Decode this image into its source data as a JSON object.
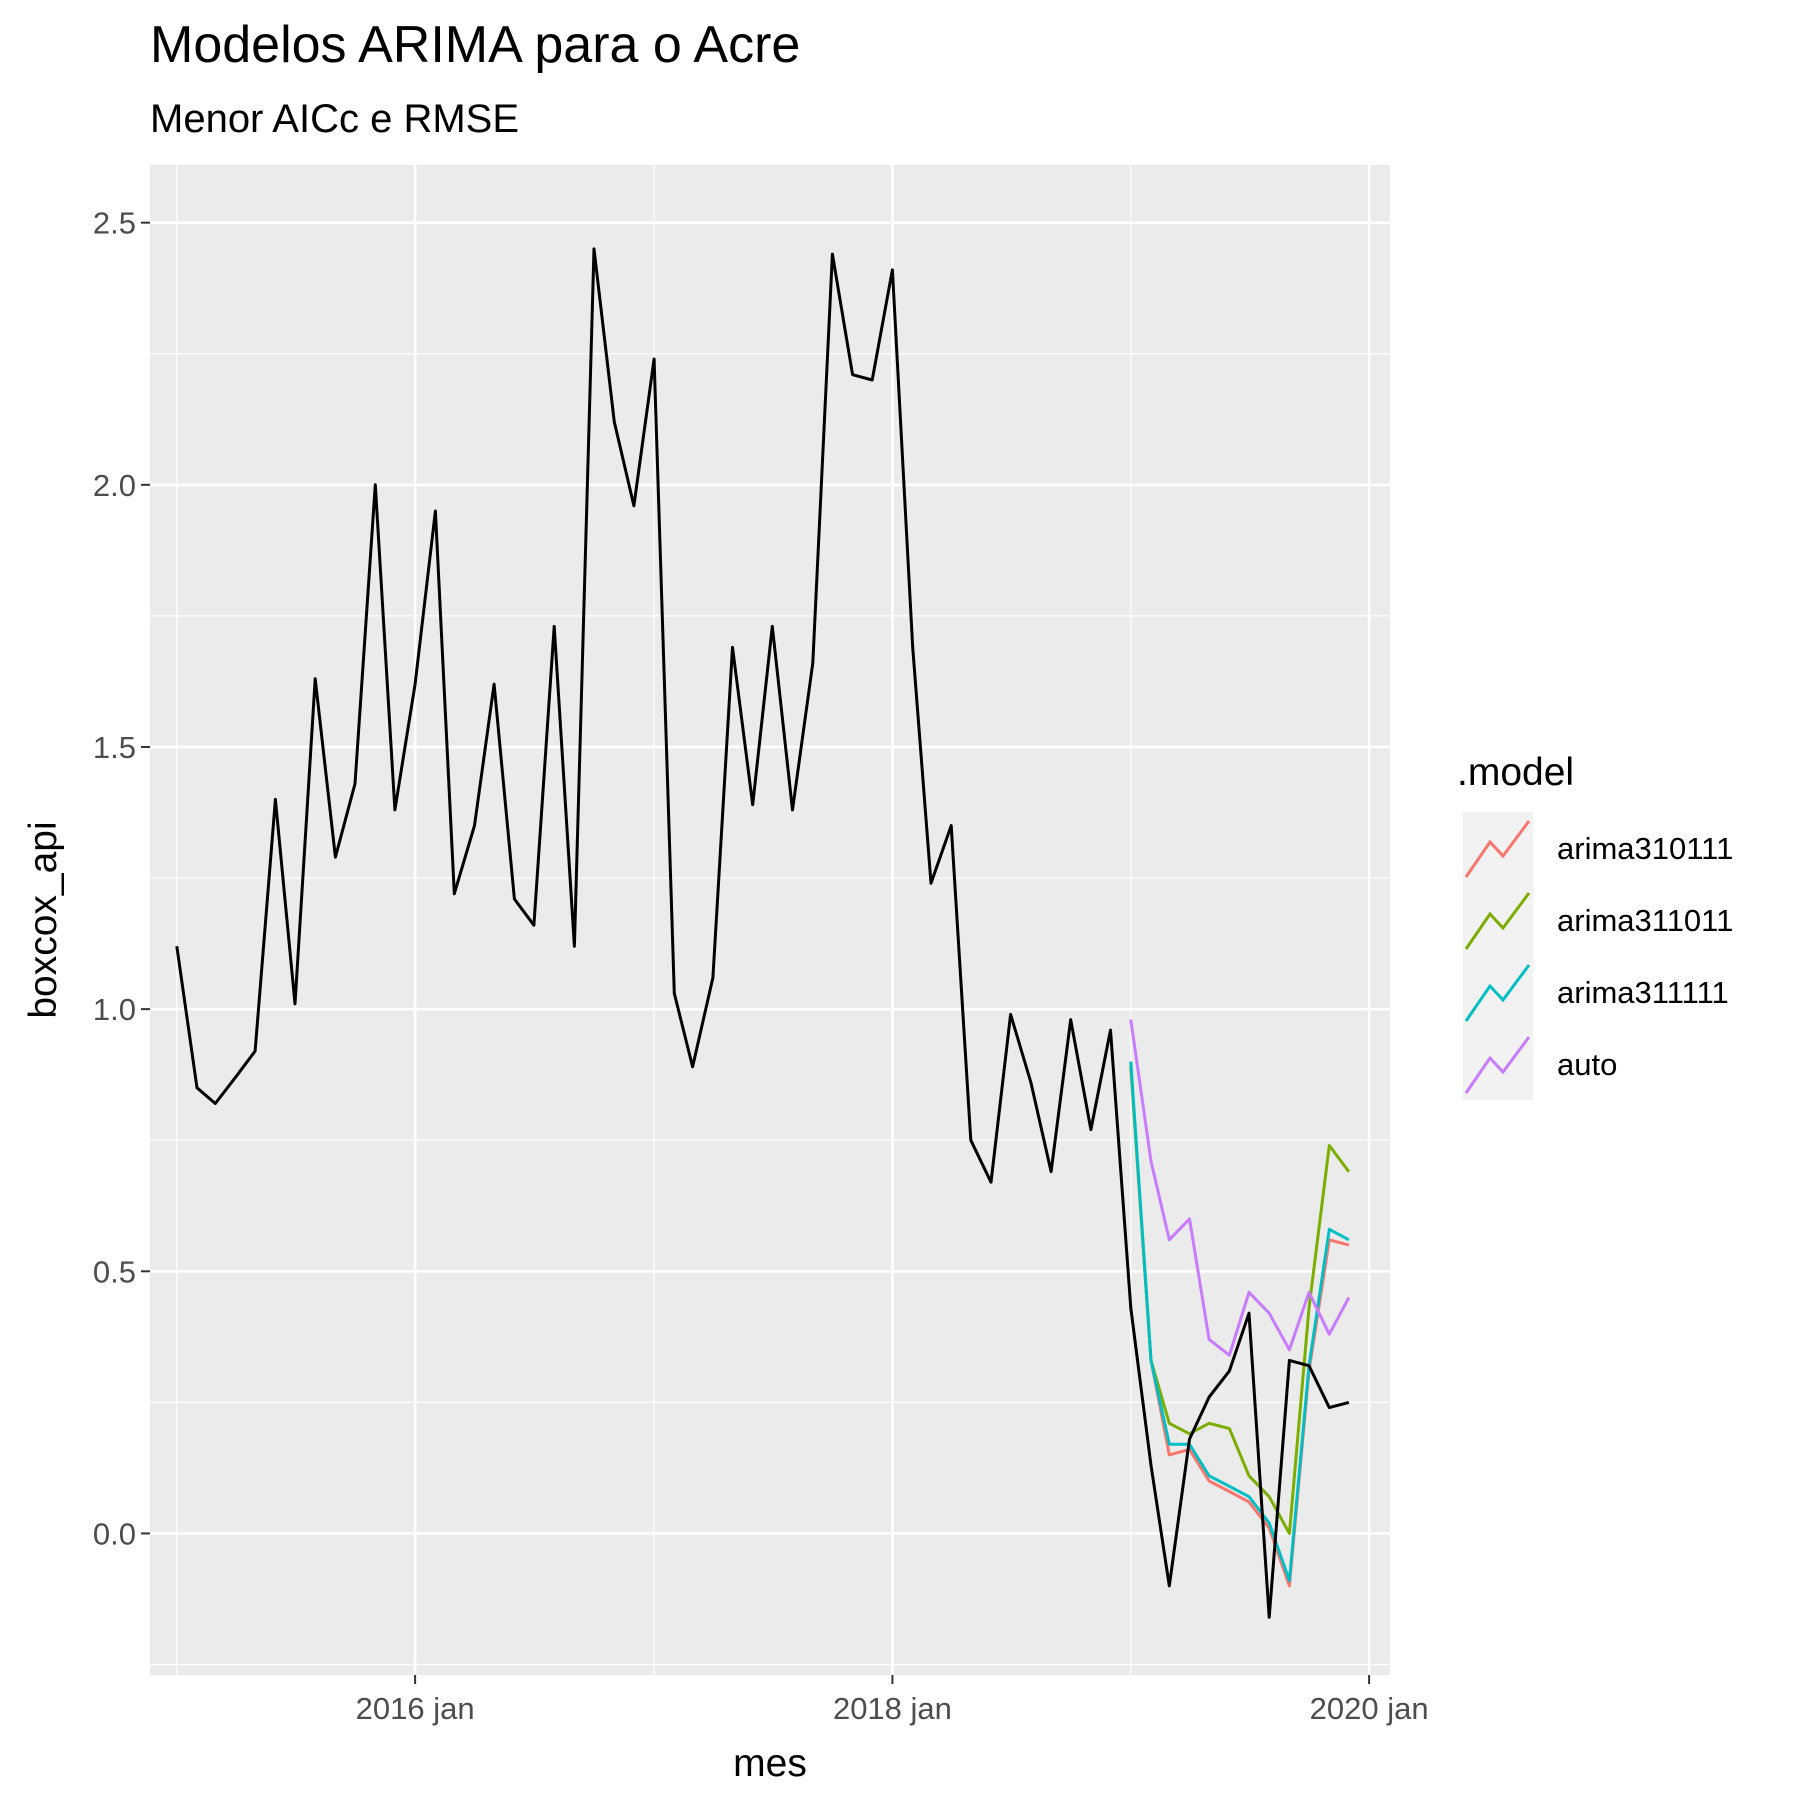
{
  "chart_data": {
    "type": "line",
    "title": "Modelos ARIMA para o Acre",
    "subtitle": "Menor AICc e RMSE",
    "xlabel": "mes",
    "ylabel": "boxcox_api",
    "x_ticks": [
      {
        "date": "2016-01",
        "label": "2016 jan"
      },
      {
        "date": "2018-01",
        "label": "2018 jan"
      },
      {
        "date": "2020-01",
        "label": "2020 jan"
      }
    ],
    "y_ticks": [
      "0.0",
      "0.5",
      "1.0",
      "1.5",
      "2.0",
      "2.5"
    ],
    "xlim": [
      "2014-11-21",
      "2020-02-02"
    ],
    "ylim": [
      -0.27,
      2.61
    ],
    "grid": true,
    "legend": {
      "title": ".model",
      "placement": "right",
      "entries": [
        {
          "name": "arima310111",
          "color": "#F8766D"
        },
        {
          "name": "arima311011",
          "color": "#7CAE00"
        },
        {
          "name": "arima311111",
          "color": "#00BFC4"
        },
        {
          "name": "auto",
          "color": "#C77CFF"
        }
      ]
    },
    "observed": {
      "color": "#000000",
      "x": [
        "2015-01",
        "2015-02",
        "2015-03",
        "2015-04",
        "2015-05",
        "2015-06",
        "2015-07",
        "2015-08",
        "2015-09",
        "2015-10",
        "2015-11",
        "2015-12",
        "2016-01",
        "2016-02",
        "2016-03",
        "2016-04",
        "2016-05",
        "2016-06",
        "2016-07",
        "2016-08",
        "2016-09",
        "2016-10",
        "2016-11",
        "2016-12",
        "2017-01",
        "2017-02",
        "2017-03",
        "2017-04",
        "2017-05",
        "2017-06",
        "2017-07",
        "2017-08",
        "2017-09",
        "2017-10",
        "2017-11",
        "2017-12",
        "2018-01",
        "2018-02",
        "2018-03",
        "2018-04",
        "2018-05",
        "2018-06",
        "2018-07",
        "2018-08",
        "2018-09",
        "2018-10",
        "2018-11",
        "2018-12",
        "2019-01",
        "2019-02",
        "2019-03",
        "2019-04",
        "2019-05",
        "2019-06",
        "2019-07",
        "2019-08",
        "2019-09",
        "2019-10",
        "2019-11",
        "2019-12"
      ],
      "y": [
        1.12,
        0.85,
        0.82,
        0.87,
        0.92,
        1.4,
        1.01,
        1.63,
        1.29,
        1.43,
        2.0,
        1.38,
        1.62,
        1.95,
        1.22,
        1.35,
        1.62,
        1.21,
        1.16,
        1.73,
        1.12,
        2.45,
        2.12,
        1.96,
        2.24,
        1.03,
        0.89,
        1.06,
        1.69,
        1.39,
        1.73,
        1.38,
        1.66,
        2.44,
        2.21,
        2.2,
        2.41,
        1.69,
        1.24,
        1.35,
        0.75,
        0.67,
        0.99,
        0.86,
        0.69,
        0.98,
        0.77,
        0.96,
        0.43,
        0.13,
        -0.1,
        0.18,
        0.26,
        0.31,
        0.42,
        -0.16,
        0.33,
        0.32,
        0.24,
        0.25
      ]
    },
    "series": [
      {
        "name": "arima310111",
        "color": "#F8766D",
        "x": [
          "2019-01",
          "2019-02",
          "2019-03",
          "2019-04",
          "2019-05",
          "2019-06",
          "2019-07",
          "2019-08",
          "2019-09",
          "2019-10",
          "2019-11",
          "2019-12"
        ],
        "y": [
          0.89,
          0.33,
          0.15,
          0.16,
          0.1,
          0.08,
          0.06,
          0.01,
          -0.1,
          0.31,
          0.56,
          0.55
        ]
      },
      {
        "name": "arima311011",
        "color": "#7CAE00",
        "x": [
          "2019-01",
          "2019-02",
          "2019-03",
          "2019-04",
          "2019-05",
          "2019-06",
          "2019-07",
          "2019-08",
          "2019-09",
          "2019-10",
          "2019-11",
          "2019-12"
        ],
        "y": [
          0.89,
          0.33,
          0.21,
          0.19,
          0.21,
          0.2,
          0.11,
          0.07,
          0.0,
          0.43,
          0.74,
          0.69
        ]
      },
      {
        "name": "arima311111",
        "color": "#00BFC4",
        "x": [
          "2019-01",
          "2019-02",
          "2019-03",
          "2019-04",
          "2019-05",
          "2019-06",
          "2019-07",
          "2019-08",
          "2019-09",
          "2019-10",
          "2019-11",
          "2019-12"
        ],
        "y": [
          0.9,
          0.33,
          0.17,
          0.17,
          0.11,
          0.09,
          0.07,
          0.02,
          -0.09,
          0.32,
          0.58,
          0.56
        ]
      },
      {
        "name": "auto",
        "color": "#C77CFF",
        "x": [
          "2019-01",
          "2019-02",
          "2019-03",
          "2019-04",
          "2019-05",
          "2019-06",
          "2019-07",
          "2019-08",
          "2019-09",
          "2019-10",
          "2019-11",
          "2019-12"
        ],
        "y": [
          0.98,
          0.71,
          0.56,
          0.6,
          0.37,
          0.34,
          0.46,
          0.42,
          0.35,
          0.46,
          0.38,
          0.45
        ]
      }
    ]
  }
}
